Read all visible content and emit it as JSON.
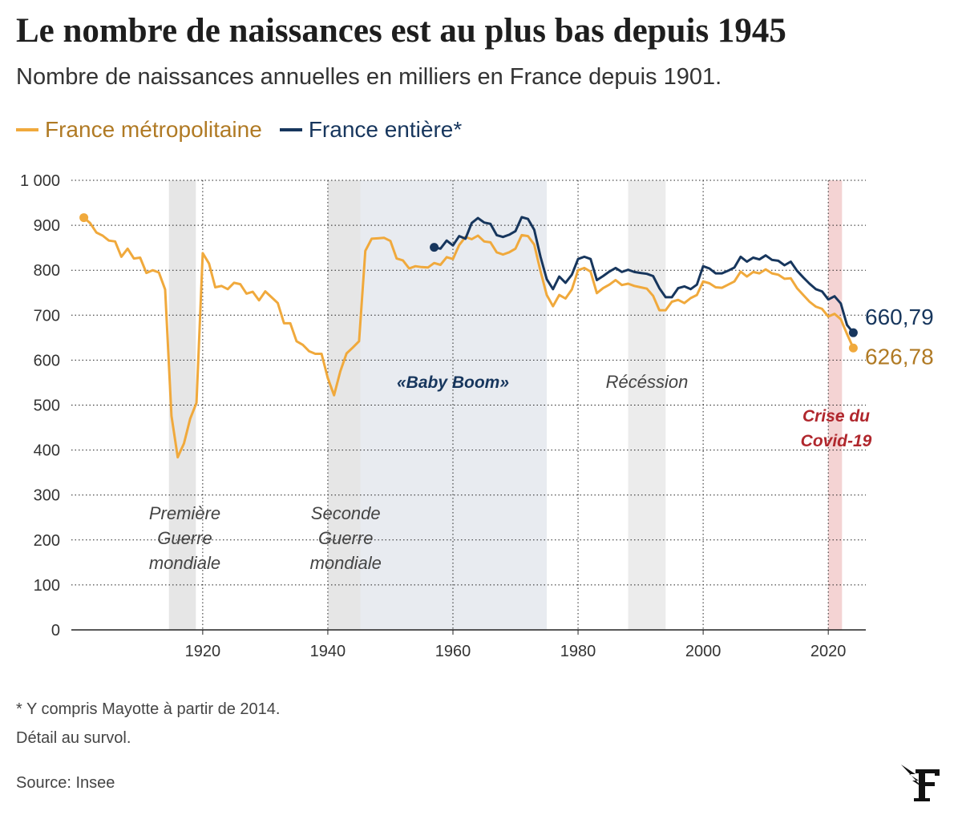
{
  "header": {
    "title": "Le nombre de naissances est au plus bas depuis 1945",
    "subtitle": "Nombre de naissances annuelles en milliers en France depuis 1901."
  },
  "footer": {
    "note": "* Y compris Mayotte à partir de 2014.",
    "hover": "Détail au survol.",
    "source": "Source: Insee"
  },
  "colors": {
    "metro": "#f0a93c",
    "entiere": "#17365d",
    "accent_red": "#b0272d"
  },
  "chart_data": {
    "type": "line",
    "title": "Le nombre de naissances est au plus bas depuis 1945",
    "subtitle": "Nombre de naissances annuelles en milliers en France depuis 1901.",
    "xlim": [
      1899,
      2026
    ],
    "ylim": [
      0,
      1000
    ],
    "x_ticks": [
      1920,
      1940,
      1960,
      1980,
      2000,
      2020
    ],
    "y_ticks": [
      0,
      100,
      200,
      300,
      400,
      500,
      600,
      700,
      800,
      900,
      1000
    ],
    "y_tick_labels": [
      "0",
      "100",
      "200",
      "300",
      "400",
      "500",
      "600",
      "700",
      "800",
      "900",
      "1 000"
    ],
    "grid": true,
    "legend": "top-left",
    "series": [
      {
        "name": "France métropolitaine",
        "color": "#f0a93c",
        "label_color": "#b07a24",
        "end_label": "626,78",
        "x": [
          1901,
          1902,
          1903,
          1904,
          1905,
          1906,
          1907,
          1908,
          1909,
          1910,
          1911,
          1912,
          1913,
          1914,
          1915,
          1916,
          1917,
          1918,
          1919,
          1920,
          1921,
          1922,
          1923,
          1924,
          1925,
          1926,
          1927,
          1928,
          1929,
          1930,
          1931,
          1932,
          1933,
          1934,
          1935,
          1936,
          1937,
          1938,
          1939,
          1940,
          1941,
          1942,
          1943,
          1944,
          1945,
          1946,
          1947,
          1948,
          1949,
          1950,
          1951,
          1952,
          1953,
          1954,
          1955,
          1956,
          1957,
          1958,
          1959,
          1960,
          1961,
          1962,
          1963,
          1964,
          1965,
          1966,
          1967,
          1968,
          1969,
          1970,
          1971,
          1972,
          1973,
          1974,
          1975,
          1976,
          1977,
          1978,
          1979,
          1980,
          1981,
          1982,
          1983,
          1984,
          1985,
          1986,
          1987,
          1988,
          1989,
          1990,
          1991,
          1992,
          1993,
          1994,
          1995,
          1996,
          1997,
          1998,
          1999,
          2000,
          2001,
          2002,
          2003,
          2004,
          2005,
          2006,
          2007,
          2008,
          2009,
          2010,
          2011,
          2012,
          2013,
          2014,
          2015,
          2016,
          2017,
          2018,
          2019,
          2020,
          2021,
          2022,
          2023,
          2024
        ],
        "y": [
          917,
          905,
          884,
          877,
          866,
          864,
          830,
          848,
          826,
          828,
          794,
          800,
          795,
          757,
          476,
          384,
          415,
          470,
          505,
          838,
          815,
          762,
          765,
          758,
          772,
          769,
          748,
          752,
          733,
          753,
          740,
          727,
          682,
          682,
          642,
          634,
          620,
          614,
          614,
          560,
          522,
          575,
          615,
          628,
          642,
          843,
          870,
          871,
          872,
          865,
          826,
          822,
          804,
          809,
          807,
          806,
          816,
          812,
          829,
          825,
          856,
          874,
          869,
          877,
          864,
          862,
          840,
          835,
          840,
          848,
          878,
          876,
          857,
          798,
          745,
          720,
          745,
          737,
          757,
          800,
          805,
          797,
          749,
          760,
          768,
          778,
          767,
          770,
          765,
          762,
          759,
          743,
          711,
          711,
          730,
          734,
          727,
          738,
          745,
          775,
          771,
          762,
          761,
          768,
          775,
          797,
          786,
          796,
          793,
          802,
          793,
          790,
          781,
          782,
          760,
          745,
          730,
          719,
          714,
          697,
          703,
          691,
          658,
          627
        ]
      },
      {
        "name": "France entière*",
        "color": "#17365d",
        "label_color": "#17365d",
        "end_label": "660,79",
        "x": [
          1957,
          1958,
          1959,
          1960,
          1961,
          1962,
          1963,
          1964,
          1965,
          1966,
          1967,
          1968,
          1969,
          1970,
          1971,
          1972,
          1973,
          1974,
          1975,
          1976,
          1977,
          1978,
          1979,
          1980,
          1981,
          1982,
          1983,
          1984,
          1985,
          1986,
          1987,
          1988,
          1989,
          1990,
          1991,
          1992,
          1993,
          1994,
          1995,
          1996,
          1997,
          1998,
          1999,
          2000,
          2001,
          2002,
          2003,
          2004,
          2005,
          2006,
          2007,
          2008,
          2009,
          2010,
          2011,
          2012,
          2013,
          2014,
          2015,
          2016,
          2017,
          2018,
          2019,
          2020,
          2021,
          2022,
          2023,
          2024
        ],
        "y": [
          851,
          848,
          866,
          855,
          876,
          870,
          905,
          916,
          906,
          903,
          878,
          874,
          879,
          887,
          918,
          914,
          890,
          830,
          780,
          758,
          786,
          772,
          790,
          825,
          830,
          825,
          778,
          787,
          797,
          805,
          796,
          801,
          796,
          794,
          792,
          787,
          760,
          740,
          740,
          760,
          764,
          758,
          768,
          809,
          804,
          793,
          793,
          799,
          806,
          830,
          819,
          828,
          824,
          833,
          823,
          821,
          811,
          819,
          799,
          784,
          770,
          758,
          753,
          735,
          742,
          726,
          678,
          661
        ]
      }
    ],
    "periods": [
      {
        "label_lines": [
          "Première",
          "Guerre",
          "mondiale"
        ],
        "start": 1914.6,
        "end": 1918.9,
        "fill": "#e6e6e6",
        "text_color": "#444444",
        "bold": false
      },
      {
        "label_lines": [
          "Seconde",
          "Guerre",
          "mondiale"
        ],
        "start": 1940,
        "end": 1945.2,
        "fill": "#e6e6e6",
        "text_color": "#444444",
        "bold": false
      },
      {
        "label_lines": [
          "«Baby Boom»"
        ],
        "start": 1945.2,
        "end": 1975,
        "fill": "#e8ebf0",
        "text_color": "#17365d",
        "bold": true
      },
      {
        "label_lines": [
          "Récéssion"
        ],
        "start": 1988,
        "end": 1994,
        "fill": "#ececec",
        "text_color": "#444444",
        "bold": false
      },
      {
        "label_lines": [
          "Crise du",
          "Covid-19"
        ],
        "start": 2020,
        "end": 2022.2,
        "fill": "#f4d3d3",
        "text_color": "#b0272d",
        "bold": true
      }
    ]
  }
}
